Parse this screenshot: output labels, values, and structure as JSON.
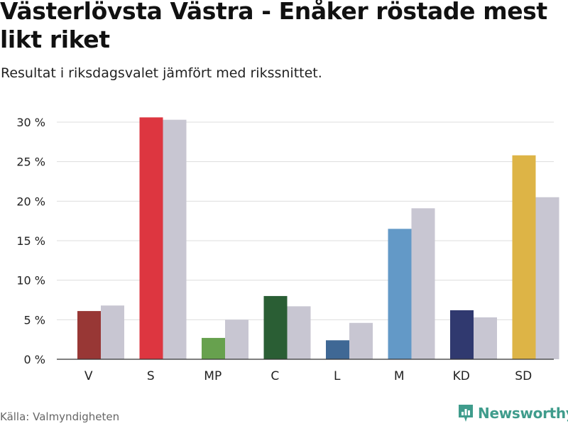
{
  "header": {
    "title": "Västerlövsta Västra - Enåker röstade mest likt riket",
    "subtitle": "Resultat i riksdagsvalet jämfört med rikssnittet."
  },
  "footer": {
    "source": "Källa: Valmyndigheten",
    "brand": "Newsworthy",
    "brand_icon": "newsworthy-logo-icon",
    "brand_color": "#3f9c8c"
  },
  "chart_data": {
    "type": "bar",
    "categories": [
      "V",
      "S",
      "MP",
      "C",
      "L",
      "M",
      "KD",
      "SD"
    ],
    "series": [
      {
        "values": [
          6.1,
          30.6,
          2.7,
          8.0,
          2.4,
          16.5,
          6.2,
          25.8
        ],
        "colors": [
          "#983735",
          "#dd3640",
          "#67a14e",
          "#2a5e34",
          "#3f6895",
          "#6399c7",
          "#30396f",
          "#ddb446"
        ]
      },
      {
        "values": [
          6.8,
          30.3,
          5.0,
          6.7,
          4.6,
          19.1,
          5.3,
          20.5
        ],
        "color": "#c8c6d2"
      }
    ],
    "ylim": [
      0,
      30
    ],
    "yticks": [
      0,
      5,
      10,
      15,
      20,
      25,
      30
    ],
    "ytick_labels": [
      "0 %",
      "5 %",
      "10 %",
      "15 %",
      "20 %",
      "25 %",
      "30 %"
    ],
    "grid": true,
    "legend": "none"
  }
}
